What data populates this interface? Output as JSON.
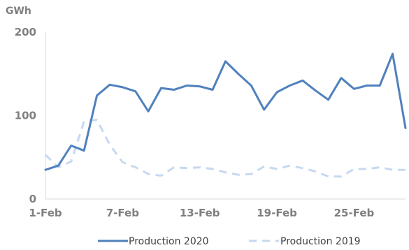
{
  "chart_data": {
    "type": "line",
    "unit_label": "GWh",
    "xlabel": "",
    "ylabel": "",
    "ylim": [
      0,
      200
    ],
    "y_ticks": [
      0,
      100,
      200
    ],
    "grid": false,
    "legend_position": "bottom",
    "x": [
      "1-Feb",
      "2-Feb",
      "3-Feb",
      "4-Feb",
      "5-Feb",
      "6-Feb",
      "7-Feb",
      "8-Feb",
      "9-Feb",
      "10-Feb",
      "11-Feb",
      "12-Feb",
      "13-Feb",
      "14-Feb",
      "15-Feb",
      "16-Feb",
      "17-Feb",
      "18-Feb",
      "19-Feb",
      "20-Feb",
      "21-Feb",
      "22-Feb",
      "23-Feb",
      "24-Feb",
      "25-Feb",
      "26-Feb",
      "27-Feb",
      "28-Feb",
      "29-Feb"
    ],
    "x_tick_labels": [
      "1-Feb",
      "7-Feb",
      "13-Feb",
      "19-Feb",
      "25-Feb"
    ],
    "series": [
      {
        "name": "Production 2020",
        "color": "#4f81bd",
        "style": "solid",
        "values": [
          35,
          40,
          64,
          58,
          124,
          137,
          134,
          129,
          105,
          133,
          131,
          136,
          135,
          131,
          165,
          150,
          136,
          107,
          128,
          136,
          142,
          130,
          119,
          145,
          132,
          136,
          136,
          174,
          85
        ]
      },
      {
        "name": "Production 2019",
        "color": "#c6d9f0",
        "style": "dashed",
        "values": [
          53,
          38,
          45,
          93,
          95,
          65,
          44,
          38,
          30,
          28,
          38,
          37,
          38,
          36,
          32,
          29,
          30,
          39,
          36,
          40,
          37,
          33,
          27,
          27,
          36,
          36,
          38,
          35,
          35
        ]
      }
    ]
  }
}
